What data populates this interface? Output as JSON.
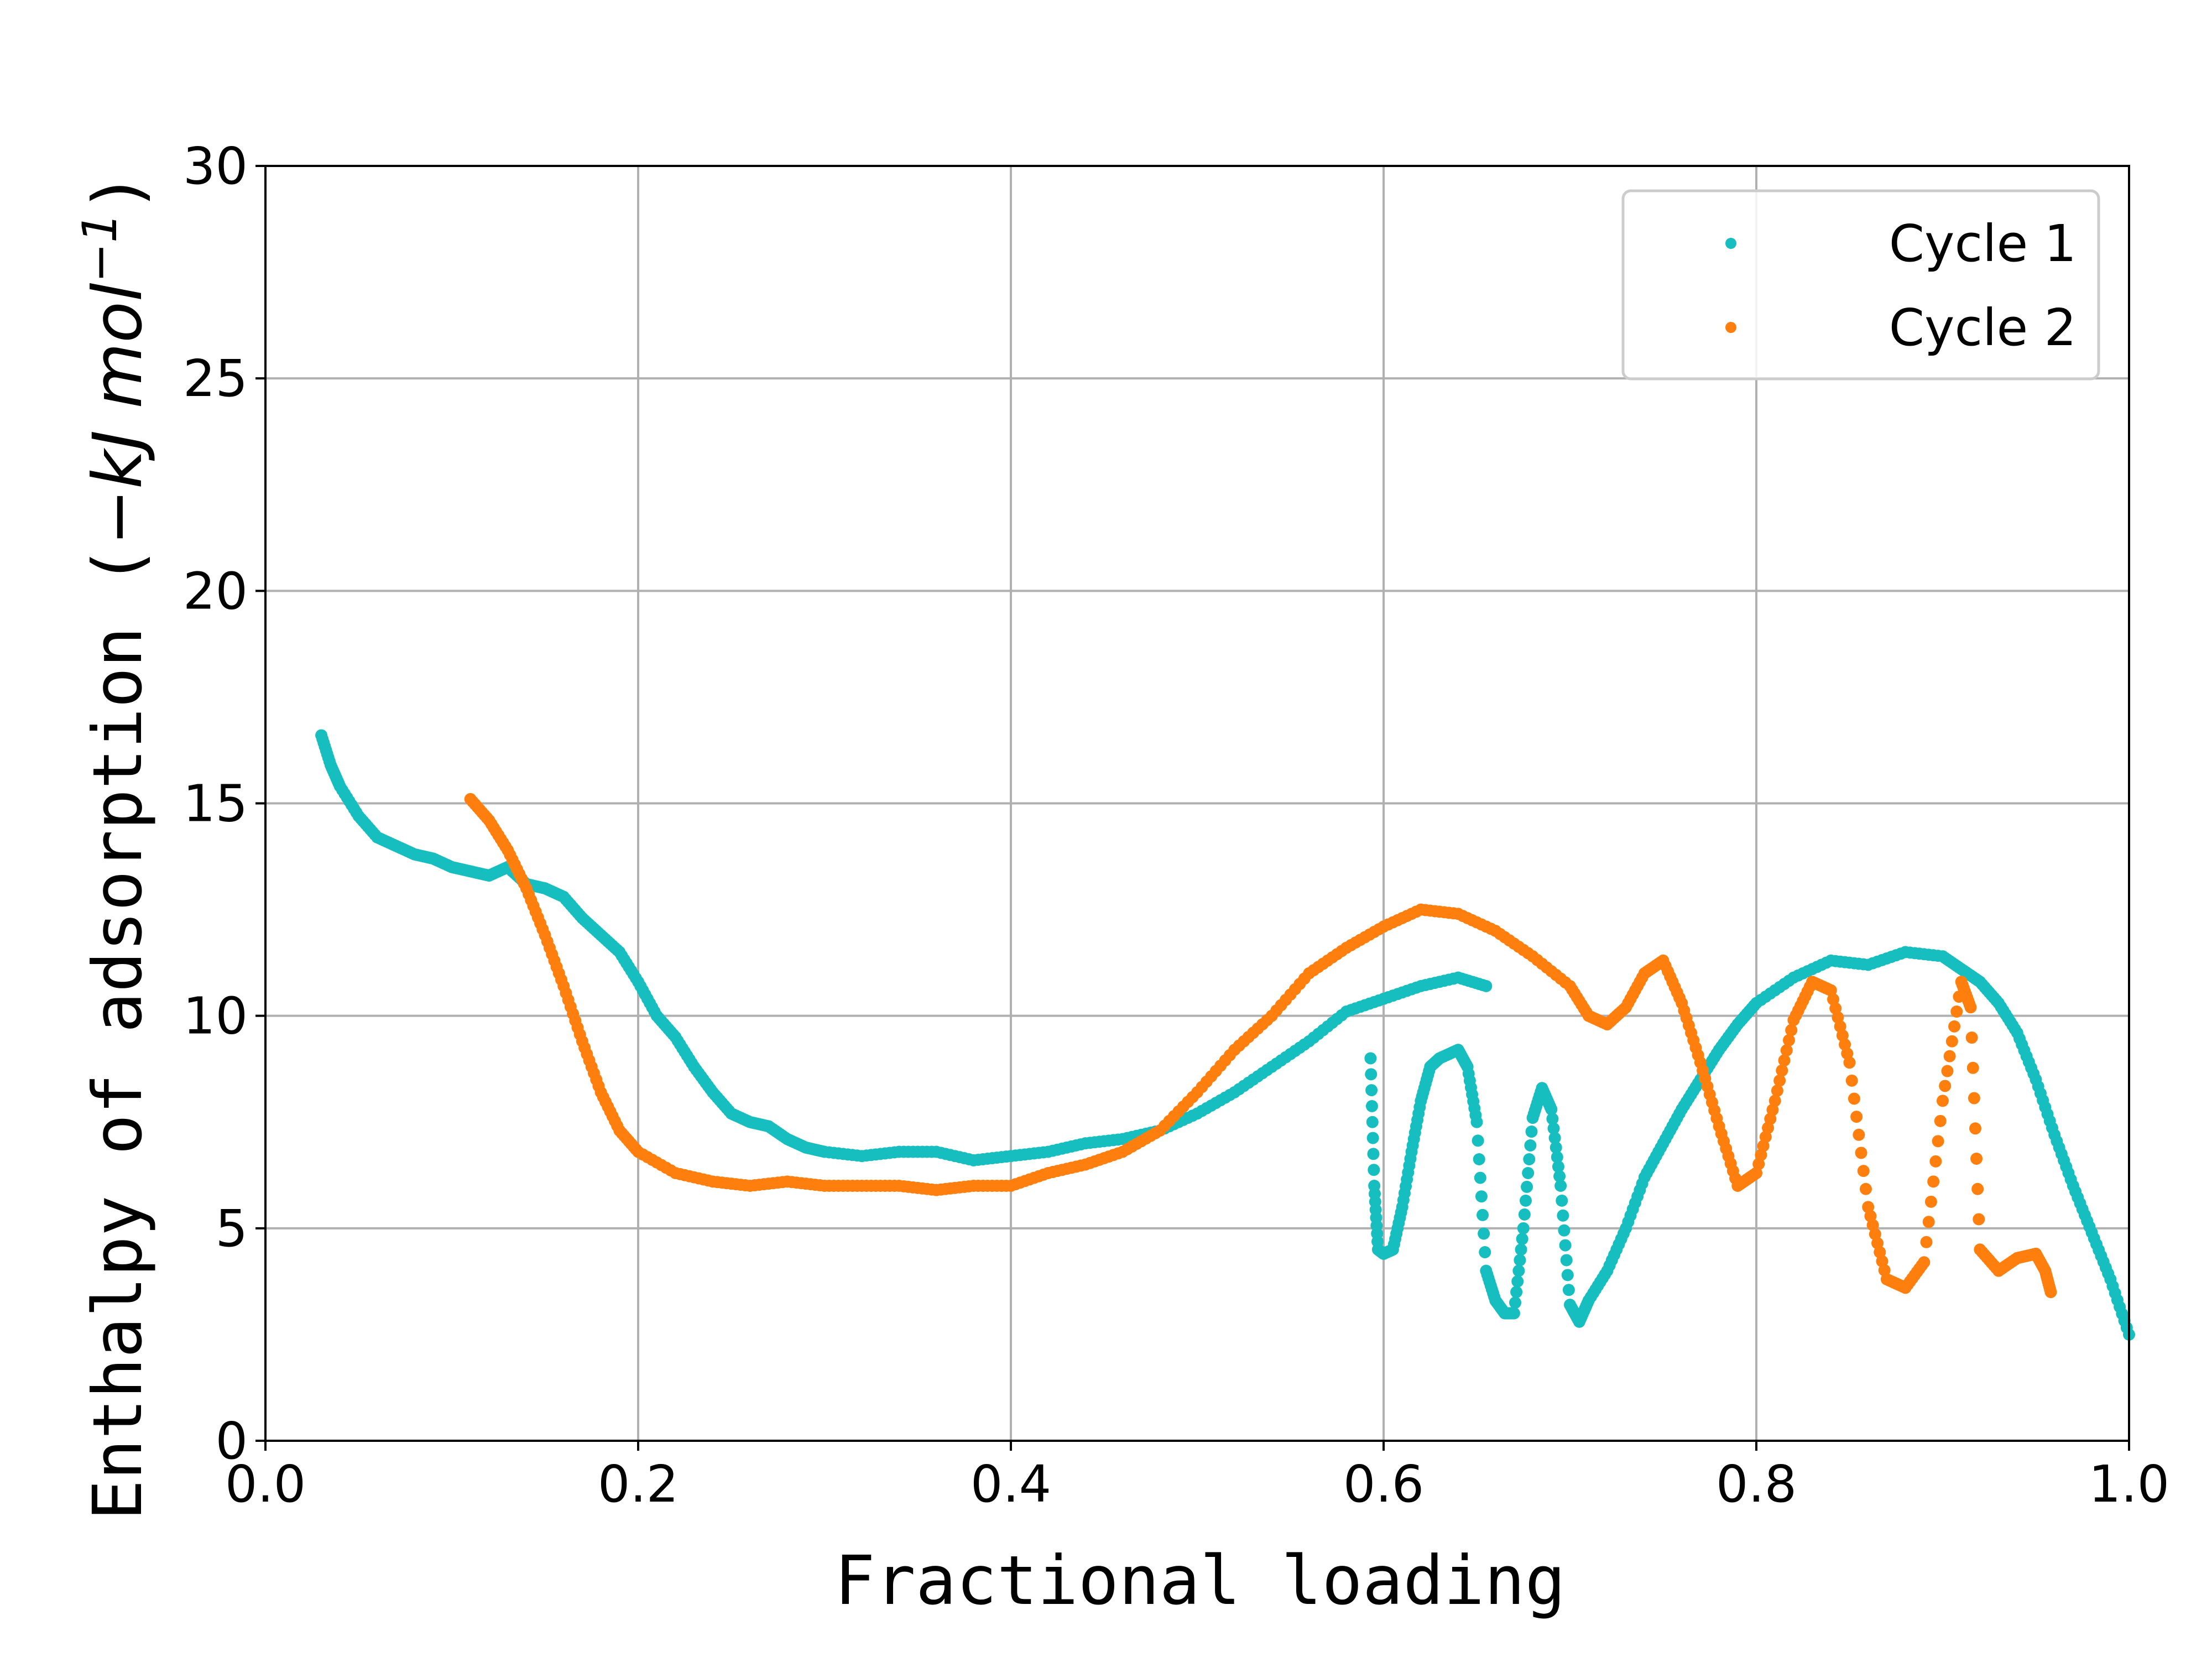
{
  "chart_data": {
    "type": "scatter",
    "xlabel": "Fractional loading",
    "ylabel": "Enthalpy of adsorption (",
    "ylabel_unit": "−kJ mol",
    "ylabel_exp": "−1",
    "ylabel_close": ")",
    "xlim": [
      0.0,
      1.0
    ],
    "ylim": [
      0,
      30
    ],
    "x_ticks": [
      "0.0",
      "0.2",
      "0.4",
      "0.6",
      "0.8",
      "1.0"
    ],
    "y_ticks": [
      "0",
      "5",
      "10",
      "15",
      "20",
      "25",
      "30"
    ],
    "grid": true,
    "legend_position": "top-right",
    "series": [
      {
        "name": "Cycle 1",
        "color": "#17bec0",
        "points": [
          [
            0.03,
            16.6
          ],
          [
            0.035,
            15.9
          ],
          [
            0.04,
            15.4
          ],
          [
            0.05,
            14.7
          ],
          [
            0.06,
            14.2
          ],
          [
            0.07,
            14.0
          ],
          [
            0.08,
            13.8
          ],
          [
            0.09,
            13.7
          ],
          [
            0.1,
            13.5
          ],
          [
            0.11,
            13.4
          ],
          [
            0.12,
            13.3
          ],
          [
            0.13,
            13.5
          ],
          [
            0.14,
            13.1
          ],
          [
            0.15,
            13.0
          ],
          [
            0.16,
            12.8
          ],
          [
            0.17,
            12.3
          ],
          [
            0.18,
            11.9
          ],
          [
            0.19,
            11.5
          ],
          [
            0.2,
            10.8
          ],
          [
            0.21,
            10.0
          ],
          [
            0.22,
            9.5
          ],
          [
            0.23,
            8.8
          ],
          [
            0.24,
            8.2
          ],
          [
            0.25,
            7.7
          ],
          [
            0.26,
            7.5
          ],
          [
            0.27,
            7.4
          ],
          [
            0.28,
            7.1
          ],
          [
            0.29,
            6.9
          ],
          [
            0.3,
            6.8
          ],
          [
            0.32,
            6.7
          ],
          [
            0.34,
            6.8
          ],
          [
            0.36,
            6.8
          ],
          [
            0.38,
            6.6
          ],
          [
            0.4,
            6.7
          ],
          [
            0.42,
            6.8
          ],
          [
            0.44,
            7.0
          ],
          [
            0.46,
            7.1
          ],
          [
            0.48,
            7.3
          ],
          [
            0.5,
            7.7
          ],
          [
            0.52,
            8.2
          ],
          [
            0.54,
            8.8
          ],
          [
            0.56,
            9.4
          ],
          [
            0.58,
            10.1
          ],
          [
            0.6,
            10.4
          ],
          [
            0.62,
            10.7
          ],
          [
            0.64,
            10.9
          ],
          [
            0.655,
            10.7
          ],
          [
            0.593,
            9.0
          ],
          [
            0.595,
            6.0
          ],
          [
            0.597,
            4.5
          ],
          [
            0.6,
            4.4
          ],
          [
            0.605,
            4.5
          ],
          [
            0.61,
            5.5
          ],
          [
            0.615,
            6.8
          ],
          [
            0.62,
            8.0
          ],
          [
            0.625,
            8.8
          ],
          [
            0.63,
            9.0
          ],
          [
            0.64,
            9.2
          ],
          [
            0.645,
            8.8
          ],
          [
            0.65,
            7.5
          ],
          [
            0.655,
            4.0
          ],
          [
            0.66,
            3.3
          ],
          [
            0.665,
            3.0
          ],
          [
            0.67,
            3.0
          ],
          [
            0.675,
            5.0
          ],
          [
            0.68,
            7.6
          ],
          [
            0.685,
            8.3
          ],
          [
            0.69,
            7.8
          ],
          [
            0.695,
            6.0
          ],
          [
            0.7,
            3.2
          ],
          [
            0.705,
            2.8
          ],
          [
            0.71,
            3.3
          ],
          [
            0.72,
            4.0
          ],
          [
            0.73,
            5.0
          ],
          [
            0.74,
            6.2
          ],
          [
            0.75,
            7.0
          ],
          [
            0.76,
            7.8
          ],
          [
            0.77,
            8.5
          ],
          [
            0.78,
            9.2
          ],
          [
            0.79,
            9.8
          ],
          [
            0.8,
            10.3
          ],
          [
            0.82,
            10.9
          ],
          [
            0.84,
            11.3
          ],
          [
            0.86,
            11.2
          ],
          [
            0.88,
            11.5
          ],
          [
            0.9,
            11.4
          ],
          [
            0.91,
            11.1
          ],
          [
            0.92,
            10.8
          ],
          [
            0.93,
            10.3
          ],
          [
            0.94,
            9.6
          ],
          [
            0.95,
            8.5
          ],
          [
            0.96,
            7.2
          ],
          [
            0.97,
            6.0
          ],
          [
            0.98,
            4.9
          ],
          [
            0.99,
            3.8
          ],
          [
            1.0,
            2.5
          ]
        ]
      },
      {
        "name": "Cycle 2",
        "color": "#ff7f0e",
        "points": [
          [
            0.11,
            15.1
          ],
          [
            0.12,
            14.6
          ],
          [
            0.13,
            13.9
          ],
          [
            0.14,
            13.0
          ],
          [
            0.15,
            11.9
          ],
          [
            0.16,
            10.7
          ],
          [
            0.17,
            9.4
          ],
          [
            0.18,
            8.2
          ],
          [
            0.19,
            7.3
          ],
          [
            0.2,
            6.8
          ],
          [
            0.22,
            6.3
          ],
          [
            0.24,
            6.1
          ],
          [
            0.26,
            6.0
          ],
          [
            0.28,
            6.1
          ],
          [
            0.3,
            6.0
          ],
          [
            0.32,
            6.0
          ],
          [
            0.34,
            6.0
          ],
          [
            0.36,
            5.9
          ],
          [
            0.38,
            6.0
          ],
          [
            0.4,
            6.0
          ],
          [
            0.42,
            6.3
          ],
          [
            0.44,
            6.5
          ],
          [
            0.46,
            6.8
          ],
          [
            0.48,
            7.3
          ],
          [
            0.5,
            8.2
          ],
          [
            0.52,
            9.2
          ],
          [
            0.54,
            10.0
          ],
          [
            0.56,
            11.0
          ],
          [
            0.58,
            11.6
          ],
          [
            0.6,
            12.1
          ],
          [
            0.62,
            12.5
          ],
          [
            0.64,
            12.4
          ],
          [
            0.66,
            12.0
          ],
          [
            0.68,
            11.4
          ],
          [
            0.7,
            10.7
          ],
          [
            0.71,
            10.0
          ],
          [
            0.72,
            9.8
          ],
          [
            0.73,
            10.2
          ],
          [
            0.74,
            11.0
          ],
          [
            0.75,
            11.3
          ],
          [
            0.76,
            10.3
          ],
          [
            0.77,
            8.9
          ],
          [
            0.78,
            7.4
          ],
          [
            0.79,
            6.0
          ],
          [
            0.8,
            6.3
          ],
          [
            0.81,
            8.0
          ],
          [
            0.82,
            9.9
          ],
          [
            0.83,
            10.8
          ],
          [
            0.84,
            10.6
          ],
          [
            0.85,
            8.9
          ],
          [
            0.86,
            5.5
          ],
          [
            0.87,
            3.8
          ],
          [
            0.88,
            3.6
          ],
          [
            0.89,
            4.2
          ],
          [
            0.9,
            8.0
          ],
          [
            0.91,
            10.8
          ],
          [
            0.915,
            10.2
          ],
          [
            0.92,
            4.5
          ],
          [
            0.93,
            4.0
          ],
          [
            0.94,
            4.3
          ],
          [
            0.95,
            4.4
          ],
          [
            0.955,
            4.0
          ],
          [
            0.958,
            3.5
          ]
        ]
      }
    ]
  }
}
